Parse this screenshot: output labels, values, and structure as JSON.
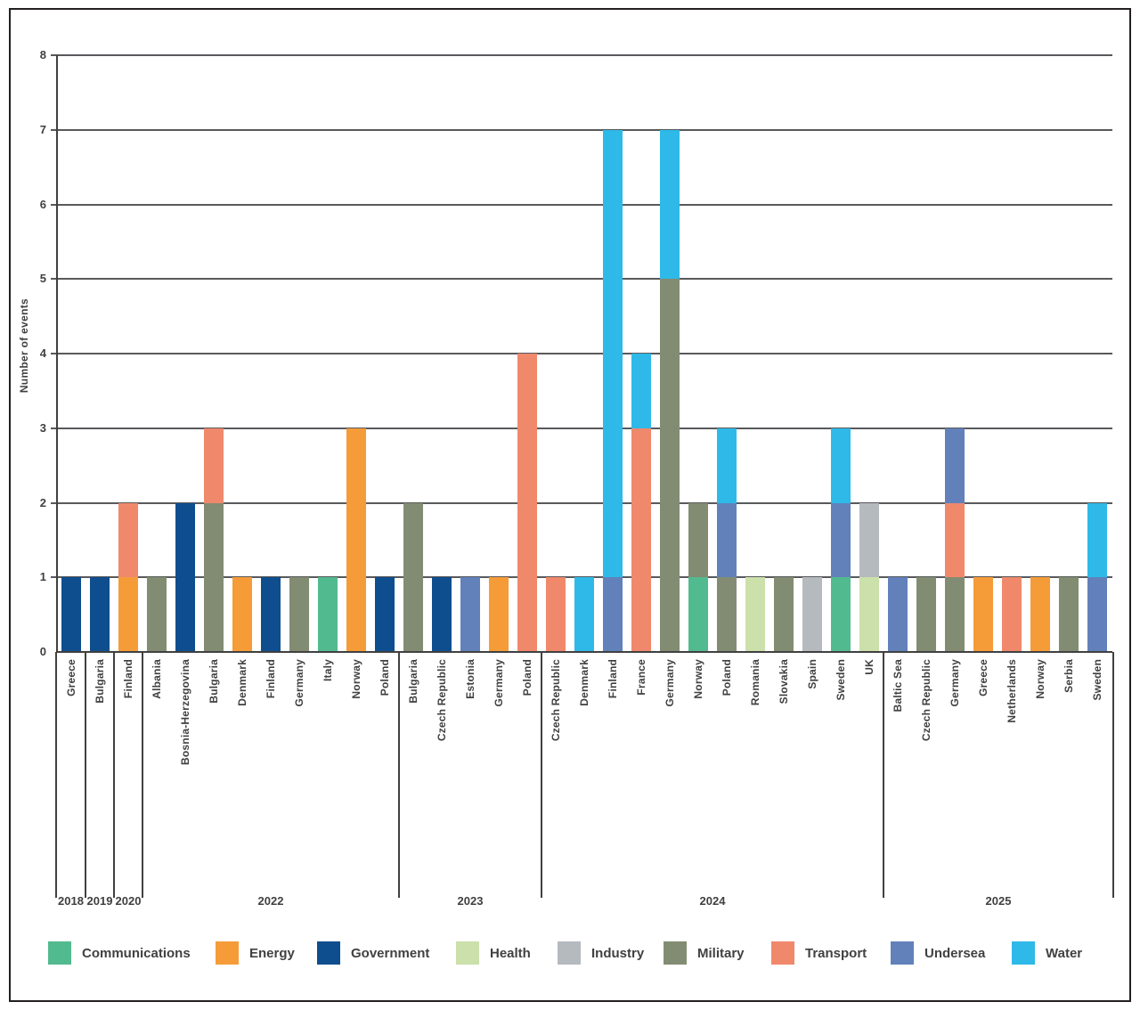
{
  "y_axis": {
    "title": "Number of events",
    "ticks": [
      "0",
      "1",
      "2",
      "3",
      "4",
      "5",
      "6",
      "7",
      "8"
    ],
    "min": 0,
    "max": 8
  },
  "palette": {
    "Communications": "#52BA8F",
    "Energy": "#F59C39",
    "Government": "#0F4E8E",
    "Health": "#CBE0AB",
    "Industry": "#B5BABF",
    "Military": "#828C72",
    "Transport": "#F0886C",
    "Undersea": "#6281BB",
    "Water": "#2FB9E8"
  },
  "legend": {
    "items": [
      {
        "label": "Communications",
        "color": "#52BA8F"
      },
      {
        "label": "Energy",
        "color": "#F59C39"
      },
      {
        "label": "Government",
        "color": "#0F4E8E"
      },
      {
        "label": "Health",
        "color": "#CBE0AB"
      },
      {
        "label": "Industry",
        "color": "#B5BABF"
      },
      {
        "label": "Military",
        "color": "#828C72"
      },
      {
        "label": "Transport",
        "color": "#F0886C"
      },
      {
        "label": "Undersea",
        "color": "#6281BB"
      },
      {
        "label": "Water",
        "color": "#2FB9E8"
      }
    ]
  },
  "chart_data": {
    "type": "bar",
    "stacked": true,
    "ylabel": "Number of events",
    "ylim": [
      0,
      8
    ],
    "grid": true,
    "legend_position": "bottom",
    "groups": [
      {
        "year": "2018",
        "bars": [
          {
            "label": "Greece",
            "stack": [
              [
                "Government",
                1
              ]
            ]
          }
        ]
      },
      {
        "year": "2019",
        "bars": [
          {
            "label": "Bulgaria",
            "stack": [
              [
                "Government",
                1
              ]
            ]
          }
        ]
      },
      {
        "year": "2020",
        "bars": [
          {
            "label": "Finland",
            "stack": [
              [
                "Energy",
                1
              ],
              [
                "Transport",
                1
              ]
            ]
          }
        ]
      },
      {
        "year": "2022",
        "bars": [
          {
            "label": "Albania",
            "stack": [
              [
                "Military",
                1
              ]
            ]
          },
          {
            "label": "Bosnia-Herzegovina",
            "stack": [
              [
                "Government",
                2
              ]
            ]
          },
          {
            "label": "Bulgaria",
            "stack": [
              [
                "Military",
                2
              ],
              [
                "Transport",
                1
              ]
            ]
          },
          {
            "label": "Denmark",
            "stack": [
              [
                "Energy",
                1
              ]
            ]
          },
          {
            "label": "Finland",
            "stack": [
              [
                "Government",
                1
              ]
            ]
          },
          {
            "label": "Germany",
            "stack": [
              [
                "Military",
                1
              ]
            ]
          },
          {
            "label": "Italy",
            "stack": [
              [
                "Communications",
                1
              ]
            ]
          },
          {
            "label": "Norway",
            "stack": [
              [
                "Energy",
                3
              ]
            ]
          },
          {
            "label": "Poland",
            "stack": [
              [
                "Government",
                1
              ]
            ]
          }
        ]
      },
      {
        "year": "2023",
        "bars": [
          {
            "label": "Bulgaria",
            "stack": [
              [
                "Military",
                2
              ]
            ]
          },
          {
            "label": "Czech Republic",
            "stack": [
              [
                "Government",
                1
              ]
            ]
          },
          {
            "label": "Estonia",
            "stack": [
              [
                "Undersea",
                1
              ]
            ]
          },
          {
            "label": "Germany",
            "stack": [
              [
                "Energy",
                1
              ]
            ]
          },
          {
            "label": "Poland",
            "stack": [
              [
                "Transport",
                4
              ]
            ]
          }
        ]
      },
      {
        "year": "2024",
        "bars": [
          {
            "label": "Czech Republic",
            "stack": [
              [
                "Transport",
                1
              ]
            ]
          },
          {
            "label": "Denmark",
            "stack": [
              [
                "Water",
                1
              ]
            ]
          },
          {
            "label": "Finland",
            "stack": [
              [
                "Undersea",
                1
              ],
              [
                "Water",
                6
              ]
            ]
          },
          {
            "label": "France",
            "stack": [
              [
                "Transport",
                3
              ],
              [
                "Water",
                1
              ]
            ]
          },
          {
            "label": "Germany",
            "stack": [
              [
                "Military",
                5
              ],
              [
                "Water",
                2
              ]
            ]
          },
          {
            "label": "Norway",
            "stack": [
              [
                "Communications",
                1
              ],
              [
                "Military",
                1
              ]
            ]
          },
          {
            "label": "Poland",
            "stack": [
              [
                "Military",
                1
              ],
              [
                "Undersea",
                1
              ],
              [
                "Water",
                1
              ]
            ]
          },
          {
            "label": "Romania",
            "stack": [
              [
                "Health",
                1
              ]
            ]
          },
          {
            "label": "Slovakia",
            "stack": [
              [
                "Military",
                1
              ]
            ]
          },
          {
            "label": "Spain",
            "stack": [
              [
                "Industry",
                1
              ]
            ]
          },
          {
            "label": "Sweden",
            "stack": [
              [
                "Communications",
                1
              ],
              [
                "Undersea",
                1
              ],
              [
                "Water",
                1
              ]
            ]
          },
          {
            "label": "UK",
            "stack": [
              [
                "Health",
                1
              ],
              [
                "Industry",
                1
              ]
            ]
          }
        ]
      },
      {
        "year": "2025",
        "bars": [
          {
            "label": "Baltic Sea",
            "stack": [
              [
                "Undersea",
                1
              ]
            ]
          },
          {
            "label": "Czech Republic",
            "stack": [
              [
                "Military",
                1
              ]
            ]
          },
          {
            "label": "Germany",
            "stack": [
              [
                "Military",
                1
              ],
              [
                "Transport",
                1
              ],
              [
                "Undersea",
                1
              ]
            ]
          },
          {
            "label": "Greece",
            "stack": [
              [
                "Energy",
                1
              ]
            ]
          },
          {
            "label": "Netherlands",
            "stack": [
              [
                "Transport",
                1
              ]
            ]
          },
          {
            "label": "Norway",
            "stack": [
              [
                "Energy",
                1
              ]
            ]
          },
          {
            "label": "Serbia",
            "stack": [
              [
                "Military",
                1
              ]
            ]
          },
          {
            "label": "Sweden",
            "stack": [
              [
                "Undersea",
                1
              ],
              [
                "Water",
                1
              ]
            ]
          }
        ]
      }
    ]
  }
}
